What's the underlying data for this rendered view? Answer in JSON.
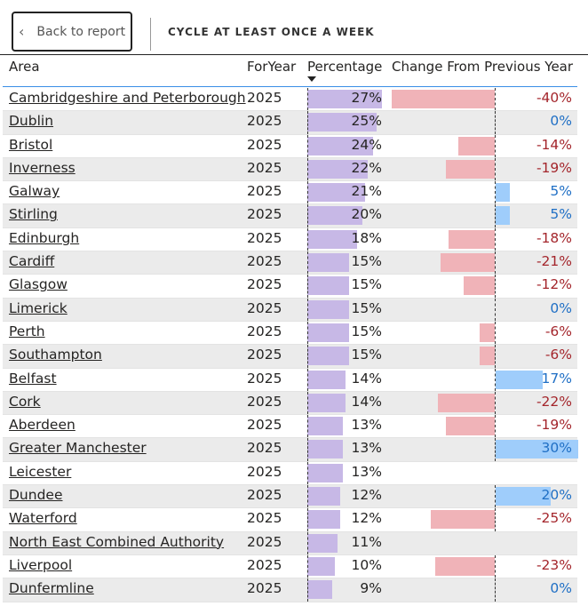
{
  "header": {
    "back_label": "Back to report",
    "title": "CYCLE AT LEAST ONCE A WEEK"
  },
  "columns": {
    "area": "Area",
    "year": "ForYear",
    "percentage": "Percentage",
    "change": "Change From Previous Year"
  },
  "colors": {
    "pct_bar": "#c7b8e6",
    "neg_bar": "#f0b3b8",
    "pos_bar": "#9fcdfb",
    "neg_text": "#a4262c",
    "pos_text": "#1f6fc5"
  },
  "rows": [
    {
      "area": "Cambridgeshire and Peterborough",
      "year": "2025",
      "pct": 27,
      "pct_label": "27%",
      "change": -40,
      "change_label": "-40%"
    },
    {
      "area": "Dublin",
      "year": "2025",
      "pct": 25,
      "pct_label": "25%",
      "change": 0,
      "change_label": "0%"
    },
    {
      "area": "Bristol",
      "year": "2025",
      "pct": 24,
      "pct_label": "24%",
      "change": -14,
      "change_label": "-14%"
    },
    {
      "area": "Inverness",
      "year": "2025",
      "pct": 22,
      "pct_label": "22%",
      "change": -19,
      "change_label": "-19%"
    },
    {
      "area": "Galway",
      "year": "2025",
      "pct": 21,
      "pct_label": "21%",
      "change": 5,
      "change_label": "5%"
    },
    {
      "area": "Stirling",
      "year": "2025",
      "pct": 20,
      "pct_label": "20%",
      "change": 5,
      "change_label": "5%"
    },
    {
      "area": "Edinburgh",
      "year": "2025",
      "pct": 18,
      "pct_label": "18%",
      "change": -18,
      "change_label": "-18%"
    },
    {
      "area": "Cardiff",
      "year": "2025",
      "pct": 15,
      "pct_label": "15%",
      "change": -21,
      "change_label": "-21%"
    },
    {
      "area": "Glasgow",
      "year": "2025",
      "pct": 15,
      "pct_label": "15%",
      "change": -12,
      "change_label": "-12%"
    },
    {
      "area": "Limerick",
      "year": "2025",
      "pct": 15,
      "pct_label": "15%",
      "change": 0,
      "change_label": "0%"
    },
    {
      "area": "Perth",
      "year": "2025",
      "pct": 15,
      "pct_label": "15%",
      "change": -6,
      "change_label": "-6%"
    },
    {
      "area": "Southampton",
      "year": "2025",
      "pct": 15,
      "pct_label": "15%",
      "change": -6,
      "change_label": "-6%"
    },
    {
      "area": "Belfast",
      "year": "2025",
      "pct": 14,
      "pct_label": "14%",
      "change": 17,
      "change_label": "17%"
    },
    {
      "area": "Cork",
      "year": "2025",
      "pct": 14,
      "pct_label": "14%",
      "change": -22,
      "change_label": "-22%"
    },
    {
      "area": "Aberdeen",
      "year": "2025",
      "pct": 13,
      "pct_label": "13%",
      "change": -19,
      "change_label": "-19%"
    },
    {
      "area": "Greater Manchester",
      "year": "2025",
      "pct": 13,
      "pct_label": "13%",
      "change": 30,
      "change_label": "30%"
    },
    {
      "area": "Leicester",
      "year": "2025",
      "pct": 13,
      "pct_label": "13%",
      "change": null,
      "change_label": ""
    },
    {
      "area": "Dundee",
      "year": "2025",
      "pct": 12,
      "pct_label": "12%",
      "change": 20,
      "change_label": "20%"
    },
    {
      "area": "Waterford",
      "year": "2025",
      "pct": 12,
      "pct_label": "12%",
      "change": -25,
      "change_label": "-25%"
    },
    {
      "area": "North East Combined Authority",
      "year": "2025",
      "pct": 11,
      "pct_label": "11%",
      "change": null,
      "change_label": ""
    },
    {
      "area": "Liverpool",
      "year": "2025",
      "pct": 10,
      "pct_label": "10%",
      "change": -23,
      "change_label": "-23%"
    },
    {
      "area": "Dunfermline",
      "year": "2025",
      "pct": 9,
      "pct_label": "9%",
      "change": 0,
      "change_label": "0%"
    }
  ]
}
